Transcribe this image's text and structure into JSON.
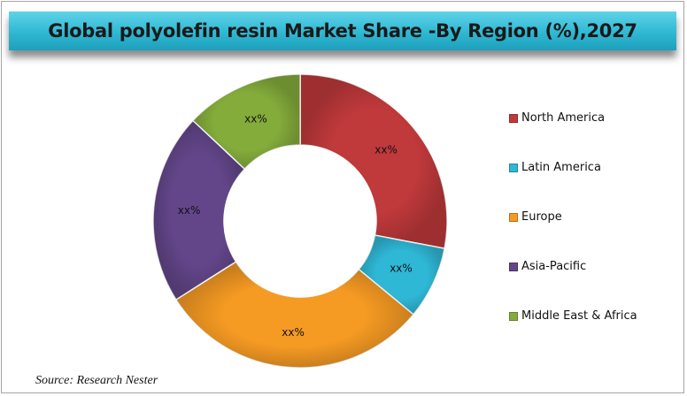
{
  "chart_data": {
    "type": "pie",
    "donut": true,
    "title": "Global polyolefin resin Market Share -By Region (%),2027",
    "categories": [
      "North America",
      "Latin America",
      "Europe",
      "Asia-Pacific",
      "Middle East & Africa"
    ],
    "values": [
      28,
      8,
      30,
      21,
      13
    ],
    "data_labels": [
      "xx%",
      "xx%",
      "xx%",
      "xx%",
      "xx%"
    ],
    "colors": [
      "#c0393b",
      "#2fb7d6",
      "#f59a23",
      "#63468a",
      "#84ac3b"
    ],
    "legend_position": "right"
  },
  "source": "Source: Research Nester"
}
